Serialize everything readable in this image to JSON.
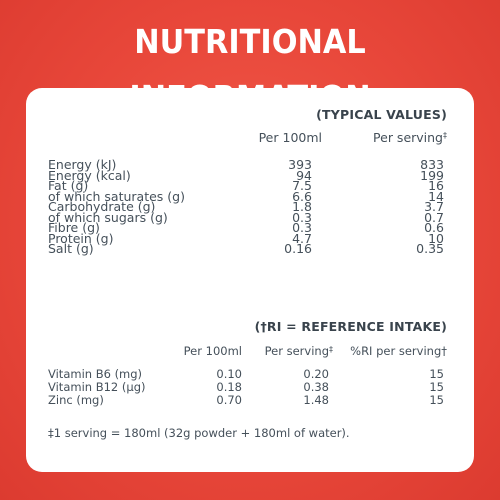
{
  "title": "NUTRITIONAL INFORMATION",
  "colors": {
    "background": "#e8473a",
    "card": "#ffffff",
    "text": "#45505a"
  },
  "typical": {
    "heading": "(TYPICAL VALUES)",
    "col_per100": "Per 100ml",
    "col_serving": "Per serving",
    "col_serving_mark": "‡",
    "rows": [
      {
        "label": "Energy (kJ)",
        "per100": "393",
        "serving": "833"
      },
      {
        "label": "Energy (kcal)",
        "per100": "94",
        "serving": "199"
      },
      {
        "label": "Fat (g)",
        "per100": "7.5",
        "serving": "16"
      },
      {
        "label": "of which saturates (g)",
        "per100": "6.6",
        "serving": "14"
      },
      {
        "label": "Carbohydrate (g)",
        "per100": "1.8",
        "serving": "3.7"
      },
      {
        "label": "of which sugars (g)",
        "per100": "0.3",
        "serving": "0.7"
      },
      {
        "label": "Fibre (g)",
        "per100": "0.3",
        "serving": "0.6"
      },
      {
        "label": "Protein (g)",
        "per100": "4.7",
        "serving": "10"
      },
      {
        "label": "Salt (g)",
        "per100": "0.16",
        "serving": "0.35"
      }
    ]
  },
  "reference": {
    "heading": "(†RI = REFERENCE INTAKE)",
    "col_per100": "Per 100ml",
    "col_serving": "Per serving",
    "col_serving_mark": "‡",
    "col_ri": "%RI per serving†",
    "rows": [
      {
        "label": "Vitamin B6 (mg)",
        "per100": "0.10",
        "serving": "0.20",
        "ri": "15"
      },
      {
        "label": "Vitamin B12 (µg)",
        "per100": "0.18",
        "serving": "0.38",
        "ri": "15"
      },
      {
        "label": "Zinc (mg)",
        "per100": "0.70",
        "serving": "1.48",
        "ri": "15"
      }
    ]
  },
  "footnote": "‡1 serving = 180ml (32g powder + 180ml of water)."
}
